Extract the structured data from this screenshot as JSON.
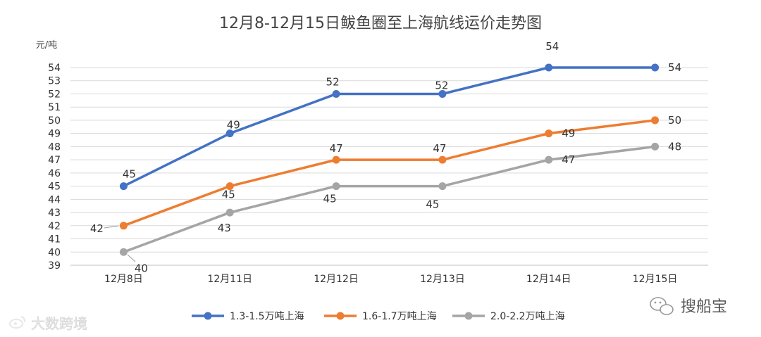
{
  "chart_data": {
    "type": "line",
    "title": "12月8-12月15日鲅鱼圈至上海航线运价走势图",
    "ylabel": "元/吨",
    "xlabel": "",
    "categories": [
      "12月8日",
      "12月11日",
      "12月12日",
      "12月13日",
      "12月14日",
      "12月15日"
    ],
    "ylim": [
      39,
      54
    ],
    "yticks": [
      39,
      40,
      41,
      42,
      43,
      44,
      45,
      46,
      47,
      48,
      49,
      50,
      51,
      52,
      53,
      54
    ],
    "grid": true,
    "legend_position": "bottom",
    "series": [
      {
        "name": "1.3-1.5万吨上海",
        "color": "#4472C4",
        "values": [
          45,
          49,
          52,
          52,
          54,
          54
        ]
      },
      {
        "name": "1.6-1.7万吨上海",
        "color": "#ED7D31",
        "values": [
          42,
          45,
          47,
          47,
          49,
          50
        ]
      },
      {
        "name": "2.0-2.2万吨上海",
        "color": "#A5A5A5",
        "values": [
          40,
          43,
          45,
          45,
          47,
          48
        ]
      }
    ]
  },
  "watermarks": {
    "left": "大数跨境",
    "right": "搜船宝"
  }
}
